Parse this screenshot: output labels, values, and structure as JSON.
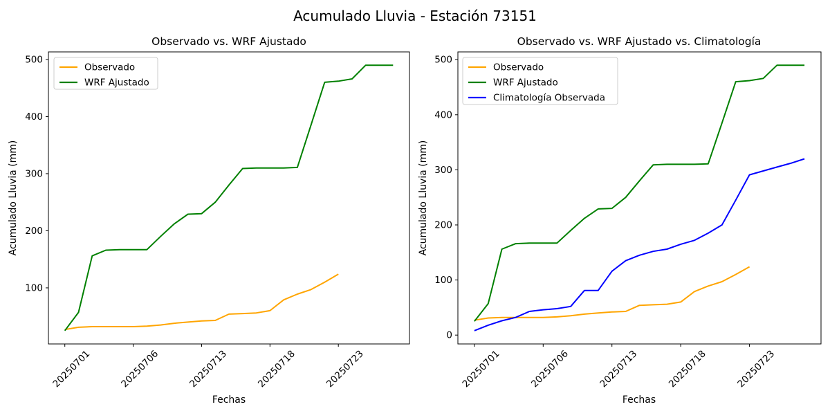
{
  "figure": {
    "suptitle": "Acumulado Lluvia - Estación 73151"
  },
  "colors": {
    "observado": "#FFA500",
    "wrf_ajustado": "#008000",
    "climatologia": "#0000FF",
    "axis": "#000000",
    "legend_border": "#cccccc"
  },
  "chart_data": [
    {
      "type": "line",
      "title": "Observado vs. WRF Ajustado",
      "xlabel": "Fechas",
      "ylabel": "Acumulado Lluvia (mm)",
      "x_tick_labels": [
        "20250701",
        "20250706",
        "20250713",
        "20250718",
        "20250723"
      ],
      "x_tick_positions": [
        0,
        5,
        10,
        15,
        20
      ],
      "y_ticks": [
        100,
        200,
        300,
        400,
        500
      ],
      "n_points": 25,
      "xlim": [
        -1.2,
        25.2
      ],
      "ylim": [
        1.75,
        513.25
      ],
      "grid": false,
      "legend_position": "upper left",
      "series": [
        {
          "name": "Observado",
          "color": "#FFA500",
          "values": [
            27,
            31,
            32,
            32,
            32,
            32,
            33,
            35,
            38,
            40,
            42,
            43,
            54,
            55,
            56,
            60,
            79,
            89,
            97,
            110,
            124
          ]
        },
        {
          "name": "WRF Ajustado",
          "color": "#008000",
          "values": [
            25,
            57,
            156,
            166,
            167,
            167,
            167,
            190,
            212,
            229,
            230,
            250,
            280,
            309,
            310,
            310,
            310,
            311,
            385,
            460,
            462,
            466,
            490,
            490,
            490
          ]
        }
      ]
    },
    {
      "type": "line",
      "title": "Observado vs. WRF Ajustado vs. Climatología",
      "xlabel": "Fechas",
      "ylabel": "Acumulado Lluvia (mm)",
      "x_tick_labels": [
        "20250701",
        "20250706",
        "20250713",
        "20250718",
        "20250723"
      ],
      "x_tick_positions": [
        0,
        5,
        10,
        15,
        20
      ],
      "y_ticks": [
        0,
        100,
        200,
        300,
        400,
        500
      ],
      "n_points": 25,
      "xlim": [
        -1.2,
        25.2
      ],
      "ylim": [
        -16.1,
        514.1
      ],
      "grid": false,
      "legend_position": "upper left",
      "series": [
        {
          "name": "Observado",
          "color": "#FFA500",
          "values": [
            27,
            31,
            32,
            32,
            32,
            32,
            33,
            35,
            38,
            40,
            42,
            43,
            54,
            55,
            56,
            60,
            79,
            89,
            97,
            110,
            124
          ]
        },
        {
          "name": "WRF Ajustado",
          "color": "#008000",
          "values": [
            25,
            57,
            156,
            166,
            167,
            167,
            167,
            190,
            212,
            229,
            230,
            250,
            280,
            309,
            310,
            310,
            310,
            311,
            385,
            460,
            462,
            466,
            490,
            490,
            490
          ]
        },
        {
          "name": "Climatología Observada",
          "color": "#0000FF",
          "values": [
            8,
            18,
            26,
            32,
            43,
            46,
            48,
            52,
            81,
            81,
            116,
            135,
            145,
            152,
            156,
            165,
            172,
            185,
            200,
            245,
            291,
            298,
            305,
            312,
            320
          ]
        }
      ]
    }
  ]
}
